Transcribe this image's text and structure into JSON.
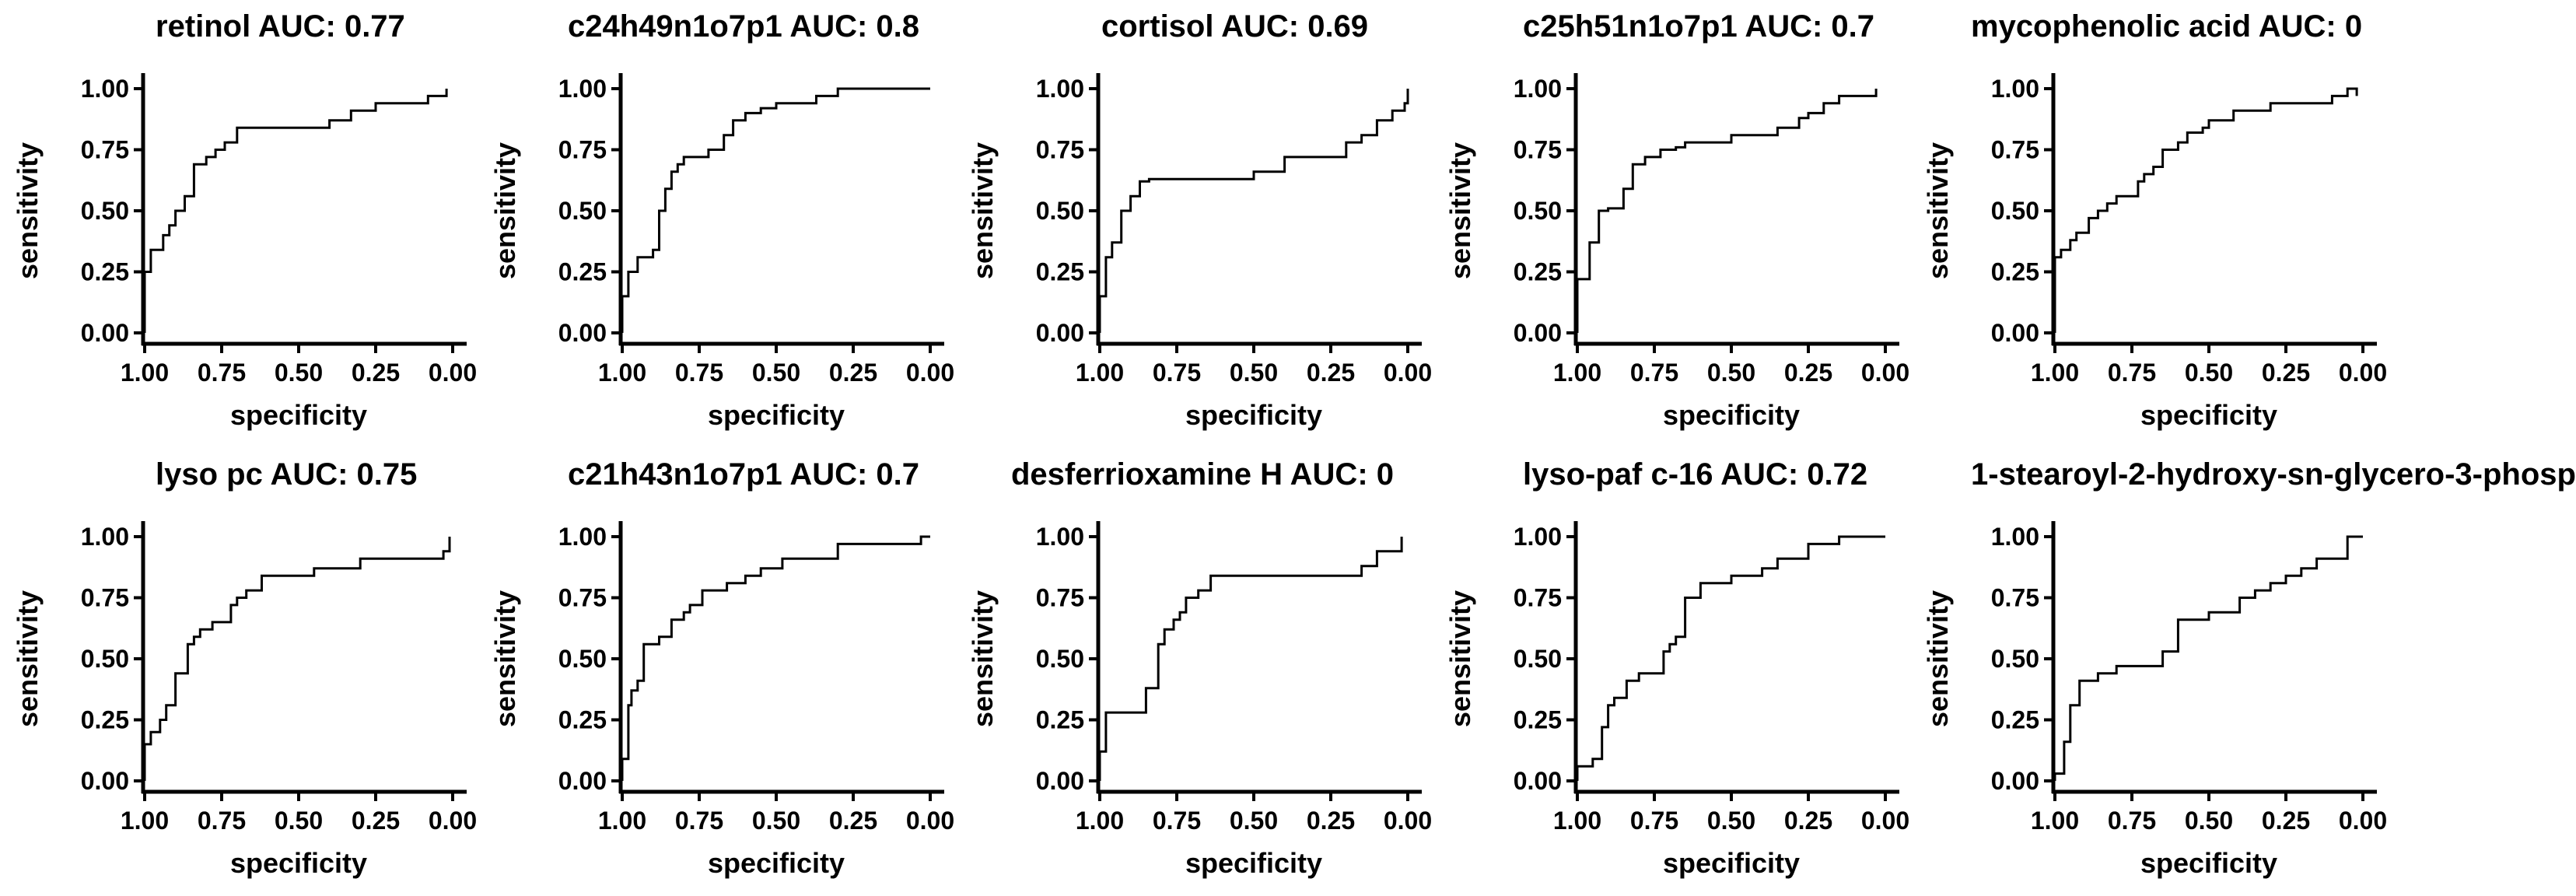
{
  "figure": {
    "xlabel": "specificity",
    "ylabel": "sensitivity",
    "xticks": [
      "1.00",
      "0.75",
      "0.50",
      "0.25",
      "0.00"
    ],
    "yticks": [
      "0.00",
      "0.25",
      "0.50",
      "0.75",
      "1.00"
    ]
  },
  "chart_data": [
    {
      "type": "line",
      "title": "retinol AUC: 0.77",
      "xlabel": "specificity",
      "ylabel": "sensitivity",
      "xlim": [
        1.0,
        0.0
      ],
      "ylim": [
        0.0,
        1.0
      ],
      "grid": false,
      "series": [
        {
          "x": [
            1.0,
            1.0,
            0.98,
            0.98,
            0.94,
            0.94,
            0.92,
            0.92,
            0.9,
            0.9,
            0.87,
            0.87,
            0.84,
            0.84,
            0.8,
            0.8,
            0.77,
            0.77,
            0.74,
            0.74,
            0.7,
            0.7,
            0.4,
            0.4,
            0.33,
            0.33,
            0.25,
            0.25,
            0.08,
            0.08,
            0.02,
            0.02
          ],
          "y": [
            0.0,
            0.25,
            0.25,
            0.34,
            0.34,
            0.4,
            0.4,
            0.44,
            0.44,
            0.5,
            0.5,
            0.56,
            0.56,
            0.69,
            0.69,
            0.72,
            0.72,
            0.75,
            0.75,
            0.78,
            0.78,
            0.84,
            0.84,
            0.87,
            0.87,
            0.91,
            0.91,
            0.94,
            0.94,
            0.97,
            0.97,
            1.0
          ]
        }
      ]
    },
    {
      "type": "line",
      "title": "c24h49n1o7p1 AUC: 0.8",
      "xlabel": "specificity",
      "ylabel": "sensitivity",
      "xlim": [
        1.0,
        0.0
      ],
      "ylim": [
        0.0,
        1.0
      ],
      "grid": false,
      "series": [
        {
          "x": [
            1.0,
            1.0,
            0.98,
            0.98,
            0.95,
            0.95,
            0.9,
            0.9,
            0.88,
            0.88,
            0.86,
            0.86,
            0.84,
            0.84,
            0.82,
            0.82,
            0.8,
            0.8,
            0.72,
            0.72,
            0.67,
            0.67,
            0.64,
            0.64,
            0.6,
            0.6,
            0.55,
            0.55,
            0.5,
            0.5,
            0.37,
            0.37,
            0.3,
            0.3,
            0.0
          ],
          "y": [
            0.0,
            0.15,
            0.15,
            0.25,
            0.25,
            0.31,
            0.31,
            0.34,
            0.34,
            0.5,
            0.5,
            0.59,
            0.59,
            0.66,
            0.66,
            0.69,
            0.69,
            0.72,
            0.72,
            0.75,
            0.75,
            0.81,
            0.81,
            0.87,
            0.87,
            0.9,
            0.9,
            0.92,
            0.92,
            0.94,
            0.94,
            0.97,
            0.97,
            1.0,
            1.0
          ]
        }
      ]
    },
    {
      "type": "line",
      "title": "cortisol AUC: 0.69",
      "xlabel": "specificity",
      "ylabel": "sensitivity",
      "xlim": [
        1.0,
        0.0
      ],
      "ylim": [
        0.0,
        1.0
      ],
      "grid": false,
      "series": [
        {
          "x": [
            1.0,
            1.0,
            0.98,
            0.98,
            0.96,
            0.96,
            0.93,
            0.93,
            0.9,
            0.9,
            0.87,
            0.87,
            0.84,
            0.84,
            0.5,
            0.5,
            0.4,
            0.4,
            0.2,
            0.2,
            0.15,
            0.15,
            0.1,
            0.1,
            0.05,
            0.05,
            0.01,
            0.01,
            0.0,
            0.0
          ],
          "y": [
            0.0,
            0.15,
            0.15,
            0.31,
            0.31,
            0.37,
            0.37,
            0.5,
            0.5,
            0.56,
            0.56,
            0.62,
            0.62,
            0.63,
            0.63,
            0.66,
            0.66,
            0.72,
            0.72,
            0.78,
            0.78,
            0.81,
            0.81,
            0.87,
            0.87,
            0.91,
            0.91,
            0.94,
            0.94,
            1.0
          ]
        }
      ]
    },
    {
      "type": "line",
      "title": "c25h51n1o7p1 AUC: 0.7",
      "xlabel": "specificity",
      "ylabel": "sensitivity",
      "xlim": [
        1.0,
        0.0
      ],
      "ylim": [
        0.0,
        1.0
      ],
      "grid": false,
      "series": [
        {
          "x": [
            1.0,
            1.0,
            0.96,
            0.96,
            0.93,
            0.93,
            0.9,
            0.9,
            0.85,
            0.85,
            0.82,
            0.82,
            0.78,
            0.78,
            0.73,
            0.73,
            0.68,
            0.68,
            0.65,
            0.65,
            0.5,
            0.5,
            0.35,
            0.35,
            0.28,
            0.28,
            0.25,
            0.25,
            0.2,
            0.2,
            0.15,
            0.15,
            0.03,
            0.03
          ],
          "y": [
            0.0,
            0.22,
            0.22,
            0.37,
            0.37,
            0.5,
            0.5,
            0.51,
            0.51,
            0.59,
            0.59,
            0.69,
            0.69,
            0.72,
            0.72,
            0.75,
            0.75,
            0.76,
            0.76,
            0.78,
            0.78,
            0.81,
            0.81,
            0.84,
            0.84,
            0.88,
            0.88,
            0.9,
            0.9,
            0.94,
            0.94,
            0.97,
            0.97,
            1.0
          ]
        }
      ]
    },
    {
      "type": "line",
      "title": "mycophenolic acid AUC: 0",
      "xlabel": "specificity",
      "ylabel": "sensitivity",
      "xlim": [
        1.0,
        0.0
      ],
      "ylim": [
        0.0,
        1.0
      ],
      "grid": false,
      "series": [
        {
          "x": [
            1.0,
            1.0,
            0.98,
            0.98,
            0.95,
            0.95,
            0.93,
            0.93,
            0.89,
            0.89,
            0.86,
            0.86,
            0.83,
            0.83,
            0.8,
            0.8,
            0.73,
            0.73,
            0.71,
            0.71,
            0.68,
            0.68,
            0.65,
            0.65,
            0.6,
            0.6,
            0.57,
            0.57,
            0.52,
            0.52,
            0.5,
            0.5,
            0.42,
            0.42,
            0.3,
            0.3,
            0.1,
            0.1,
            0.05,
            0.05,
            0.02,
            0.02
          ],
          "y": [
            0.0,
            0.31,
            0.31,
            0.34,
            0.34,
            0.38,
            0.38,
            0.41,
            0.41,
            0.47,
            0.47,
            0.5,
            0.5,
            0.53,
            0.53,
            0.56,
            0.56,
            0.62,
            0.62,
            0.65,
            0.65,
            0.68,
            0.68,
            0.75,
            0.75,
            0.78,
            0.78,
            0.82,
            0.82,
            0.84,
            0.84,
            0.87,
            0.87,
            0.91,
            0.91,
            0.94,
            0.94,
            0.97,
            0.97,
            1.0,
            1.0,
            0.97
          ]
        }
      ]
    },
    {
      "type": "line",
      "title": "lyso pc AUC: 0.75",
      "xlabel": "specificity",
      "ylabel": "sensitivity",
      "xlim": [
        1.0,
        0.0
      ],
      "ylim": [
        0.0,
        1.0
      ],
      "grid": false,
      "series": [
        {
          "x": [
            1.0,
            1.0,
            0.98,
            0.98,
            0.95,
            0.95,
            0.93,
            0.93,
            0.9,
            0.9,
            0.86,
            0.86,
            0.84,
            0.84,
            0.82,
            0.82,
            0.78,
            0.78,
            0.72,
            0.72,
            0.7,
            0.7,
            0.67,
            0.67,
            0.62,
            0.62,
            0.45,
            0.45,
            0.3,
            0.3,
            0.03,
            0.03,
            0.01,
            0.01
          ],
          "y": [
            0.0,
            0.15,
            0.15,
            0.2,
            0.2,
            0.25,
            0.25,
            0.31,
            0.31,
            0.44,
            0.44,
            0.56,
            0.56,
            0.59,
            0.59,
            0.62,
            0.62,
            0.65,
            0.65,
            0.72,
            0.72,
            0.75,
            0.75,
            0.78,
            0.78,
            0.84,
            0.84,
            0.87,
            0.87,
            0.91,
            0.91,
            0.94,
            0.94,
            1.0
          ]
        }
      ]
    },
    {
      "type": "line",
      "title": "c21h43n1o7p1 AUC: 0.7",
      "xlabel": "specificity",
      "ylabel": "sensitivity",
      "xlim": [
        1.0,
        0.0
      ],
      "ylim": [
        0.0,
        1.0
      ],
      "grid": false,
      "series": [
        {
          "x": [
            1.0,
            1.0,
            0.98,
            0.98,
            0.97,
            0.97,
            0.95,
            0.95,
            0.93,
            0.93,
            0.88,
            0.88,
            0.84,
            0.84,
            0.8,
            0.8,
            0.78,
            0.78,
            0.74,
            0.74,
            0.66,
            0.66,
            0.6,
            0.6,
            0.55,
            0.55,
            0.48,
            0.48,
            0.3,
            0.3,
            0.03,
            0.03,
            0.0
          ],
          "y": [
            0.0,
            0.09,
            0.09,
            0.31,
            0.31,
            0.37,
            0.37,
            0.41,
            0.41,
            0.56,
            0.56,
            0.59,
            0.59,
            0.66,
            0.66,
            0.69,
            0.69,
            0.72,
            0.72,
            0.78,
            0.78,
            0.81,
            0.81,
            0.84,
            0.84,
            0.87,
            0.87,
            0.91,
            0.91,
            0.97,
            0.97,
            1.0,
            1.0
          ]
        }
      ]
    },
    {
      "type": "line",
      "title": "desferrioxamine H AUC: 0",
      "xlabel": "specificity",
      "ylabel": "sensitivity",
      "xlim": [
        1.0,
        0.0
      ],
      "ylim": [
        0.0,
        1.0
      ],
      "grid": false,
      "series": [
        {
          "x": [
            1.0,
            1.0,
            0.98,
            0.98,
            0.85,
            0.85,
            0.81,
            0.81,
            0.79,
            0.79,
            0.76,
            0.76,
            0.74,
            0.74,
            0.72,
            0.72,
            0.68,
            0.68,
            0.64,
            0.64,
            0.15,
            0.15,
            0.1,
            0.1,
            0.02,
            0.02
          ],
          "y": [
            0.0,
            0.12,
            0.12,
            0.28,
            0.28,
            0.38,
            0.38,
            0.56,
            0.56,
            0.62,
            0.62,
            0.66,
            0.66,
            0.69,
            0.69,
            0.75,
            0.75,
            0.78,
            0.78,
            0.84,
            0.84,
            0.88,
            0.88,
            0.94,
            0.94,
            1.0
          ]
        }
      ]
    },
    {
      "type": "line",
      "title": "lyso-paf c-16 AUC: 0.72",
      "xlabel": "specificity",
      "ylabel": "sensitivity",
      "xlim": [
        1.0,
        0.0
      ],
      "ylim": [
        0.0,
        1.0
      ],
      "grid": false,
      "series": [
        {
          "x": [
            1.0,
            1.0,
            0.95,
            0.95,
            0.92,
            0.92,
            0.9,
            0.9,
            0.88,
            0.88,
            0.84,
            0.84,
            0.8,
            0.8,
            0.72,
            0.72,
            0.7,
            0.7,
            0.68,
            0.68,
            0.65,
            0.65,
            0.6,
            0.6,
            0.5,
            0.5,
            0.4,
            0.4,
            0.35,
            0.35,
            0.25,
            0.25,
            0.15,
            0.15,
            0.0
          ],
          "y": [
            0.0,
            0.06,
            0.06,
            0.09,
            0.09,
            0.22,
            0.22,
            0.31,
            0.31,
            0.34,
            0.34,
            0.41,
            0.41,
            0.44,
            0.44,
            0.53,
            0.53,
            0.56,
            0.56,
            0.59,
            0.59,
            0.75,
            0.75,
            0.81,
            0.81,
            0.84,
            0.84,
            0.87,
            0.87,
            0.91,
            0.91,
            0.97,
            0.97,
            1.0,
            1.0
          ]
        }
      ]
    },
    {
      "type": "line",
      "title": "1-stearoyl-2-hydroxy-sn-glycero-3-phosp",
      "xlabel": "specificity",
      "ylabel": "sensitivity",
      "xlim": [
        1.0,
        0.0
      ],
      "ylim": [
        0.0,
        1.0
      ],
      "grid": false,
      "series": [
        {
          "x": [
            1.0,
            1.0,
            0.97,
            0.97,
            0.95,
            0.95,
            0.92,
            0.92,
            0.86,
            0.86,
            0.8,
            0.8,
            0.65,
            0.65,
            0.6,
            0.6,
            0.5,
            0.5,
            0.4,
            0.4,
            0.35,
            0.35,
            0.3,
            0.3,
            0.25,
            0.25,
            0.2,
            0.2,
            0.15,
            0.15,
            0.05,
            0.05,
            0.0
          ],
          "y": [
            0.0,
            0.03,
            0.03,
            0.16,
            0.16,
            0.31,
            0.31,
            0.41,
            0.41,
            0.44,
            0.44,
            0.47,
            0.47,
            0.53,
            0.53,
            0.66,
            0.66,
            0.69,
            0.69,
            0.75,
            0.75,
            0.78,
            0.78,
            0.81,
            0.81,
            0.84,
            0.84,
            0.87,
            0.87,
            0.91,
            0.91,
            1.0,
            1.0
          ]
        }
      ]
    }
  ]
}
